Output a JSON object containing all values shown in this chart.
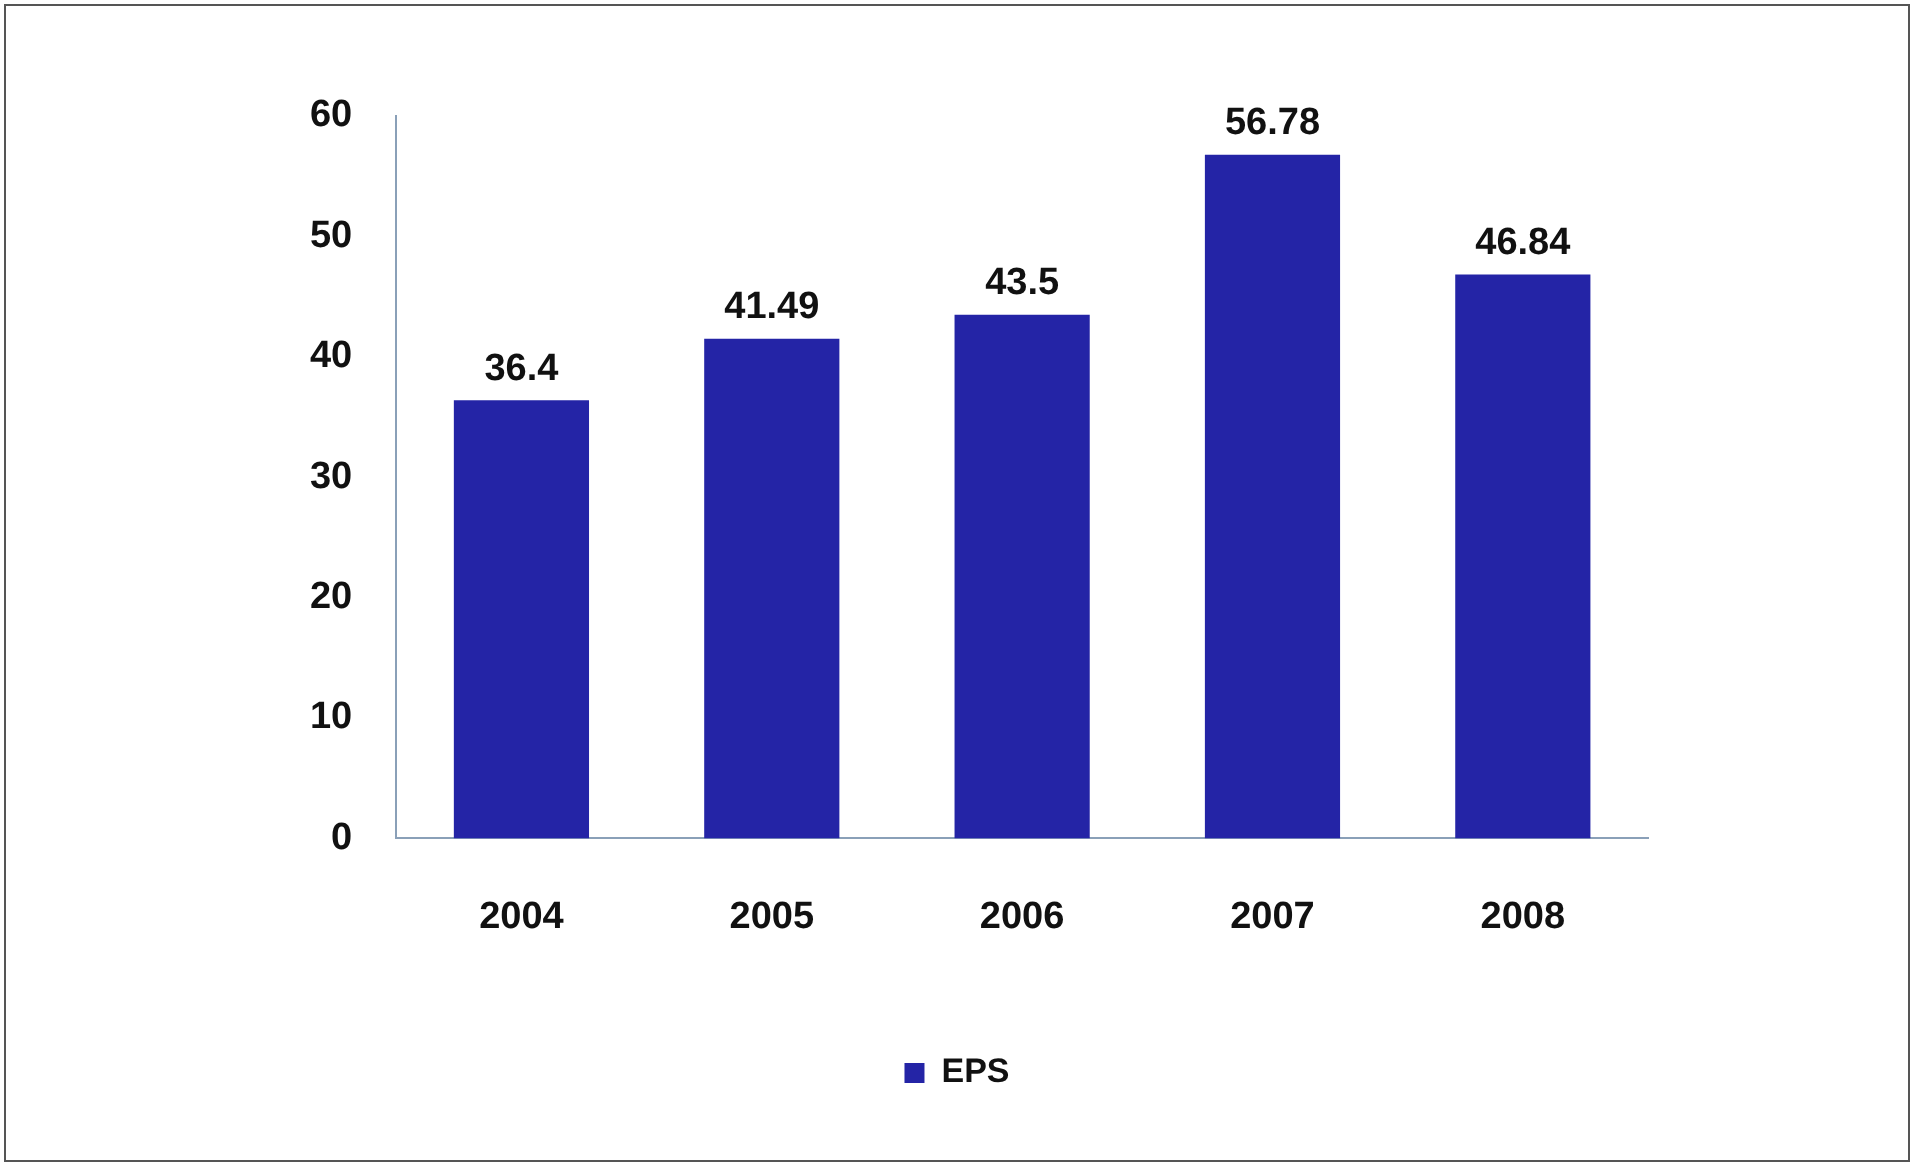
{
  "chart_data": {
    "type": "bar",
    "categories": [
      "2004",
      "2005",
      "2006",
      "2007",
      "2008"
    ],
    "series": [
      {
        "name": "EPS",
        "color": "#2424a6",
        "values": [
          36.4,
          41.49,
          43.5,
          56.78,
          46.84
        ]
      }
    ],
    "ylim": [
      0,
      60
    ],
    "yticks": [
      0,
      10,
      20,
      30,
      40,
      50,
      60
    ],
    "data_labels": true,
    "grid": false,
    "legend": "bottom"
  }
}
